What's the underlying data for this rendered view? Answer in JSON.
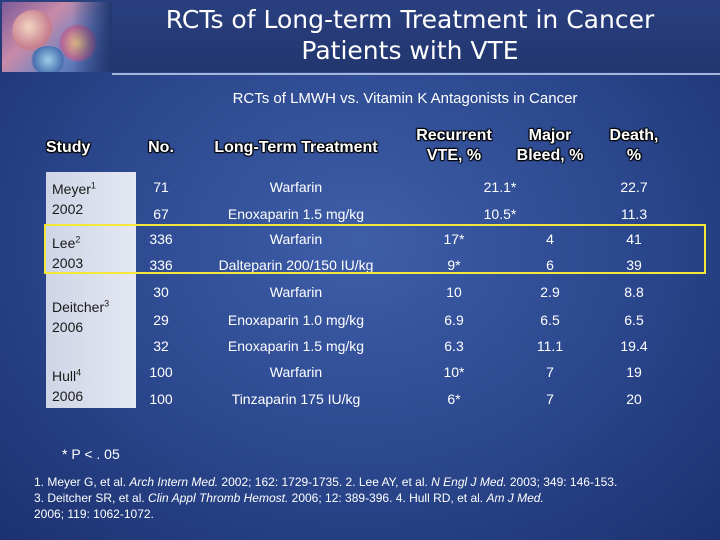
{
  "title": {
    "line1": "RCTs of Long-term Treatment in Cancer",
    "line2": "Patients with VTE"
  },
  "subtitle": "RCTs of LMWH vs. Vitamin K Antagonists in Cancer",
  "headers": {
    "study": "Study",
    "no": "No.",
    "treatment": "Long-Term Treatment",
    "recurrent_1": "Recurrent",
    "recurrent_2": "VTE, %",
    "bleed_1": "Major",
    "bleed_2": "Bleed, %",
    "death_1": "Death,",
    "death_2": "%"
  },
  "studies": [
    {
      "name": "Meyer",
      "ref": "1",
      "year": "2002"
    },
    {
      "name": "Lee",
      "ref": "2",
      "year": "2003"
    },
    {
      "name": "Deitcher",
      "ref": "3",
      "year": "2006"
    },
    {
      "name": "Hull",
      "ref": "4",
      "year": "2006"
    }
  ],
  "rows": [
    {
      "no": "71",
      "treatment": "Warfarin",
      "combined": "21.1*",
      "death": "22.7"
    },
    {
      "no": "67",
      "treatment": "Enoxaparin 1.5 mg/kg",
      "combined": "10.5*",
      "death": "11.3"
    },
    {
      "no": "336",
      "treatment": "Warfarin",
      "recurrent": "17*",
      "bleed": "4",
      "death": "41"
    },
    {
      "no": "336",
      "treatment": "Dalteparin 200/150 IU/kg",
      "recurrent": "9*",
      "bleed": "6",
      "death": "39"
    },
    {
      "no": "30",
      "treatment": "Warfarin",
      "recurrent": "10",
      "bleed": "2.9",
      "death": "8.8"
    },
    {
      "no": "29",
      "treatment": "Enoxaparin 1.0 mg/kg",
      "recurrent": "6.9",
      "bleed": "6.5",
      "death": "6.5"
    },
    {
      "no": "32",
      "treatment": "Enoxaparin 1.5 mg/kg",
      "recurrent": "6.3",
      "bleed": "11.1",
      "death": "19.4"
    },
    {
      "no": "100",
      "treatment": "Warfarin",
      "recurrent": "10*",
      "bleed": "7",
      "death": "19"
    },
    {
      "no": "100",
      "treatment": "Tinzaparin 175 IU/kg",
      "recurrent": "6*",
      "bleed": "7",
      "death": "20"
    }
  ],
  "footnote": "* P < . 05",
  "references": {
    "r1_a": "1. Meyer G, et al. ",
    "r1_j": "Arch Intern Med.",
    "r1_b": " 2002; 162: 1729-1735. 2. Lee AY, et al. ",
    "r2_j": "N Engl J Med.",
    "r2_b": " 2003; 349: 146-153.",
    "r3_a": "3. Deitcher SR, et al. ",
    "r3_j": "Clin Appl Thromb Hemost.",
    "r3_b": " 2006; 12: 389-396. 4. Hull RD, et al. ",
    "r4_j": "Am J Med.",
    "r4_b": "2006; 119: 1062-1072."
  }
}
